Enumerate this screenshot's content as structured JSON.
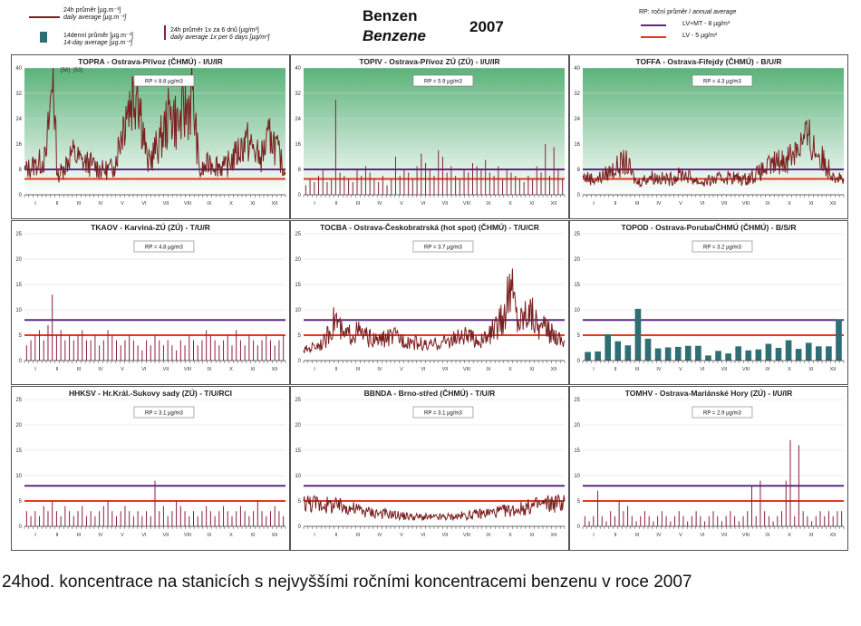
{
  "header": {
    "title_cz": "Benzen",
    "title_en": "Benzene",
    "year": "2007",
    "legend_line_cz": "24h průměr [µg.m⁻³]",
    "legend_line_en": "daily average [µg.m⁻³]",
    "legend_bar_cz": "14denní průměr [µg.m⁻³]",
    "legend_bar_en": "14-day average [µg.m⁻³]",
    "legend_spike_cz": "24h průměr 1x za 6 dnů [µg/m³]",
    "legend_spike_en": "daily average 1x per 6 days [µg/m³]",
    "rp_legend_cz": "RP: roční průměr",
    "rp_legend_en": "annual average",
    "lvmt_label": "LV+MT -  8  µg/m³",
    "lv_label": "LV   - 5 µg/m³"
  },
  "colors": {
    "line": "#7a1f1f",
    "bar": "#2e6e74",
    "spike": "#8a2040",
    "lvmt": "#5b2a86",
    "lv": "#e03a1a",
    "green": "#5bb37a"
  },
  "months": [
    "I",
    "II",
    "III",
    "IV",
    "V",
    "VI",
    "VII",
    "VIII",
    "IX",
    "X",
    "XI",
    "XII"
  ],
  "caption": "24hod. koncentrace na stanicích s nejvyššími ročními koncentracemi benzenu v roce 2007",
  "chart_data": [
    {
      "type": "line",
      "title": "TOPRA - Ostrava-Přívoz (ČHMÚ) - I/U/IR",
      "rp": "RP = 8.8 µg/m3",
      "ylim": [
        0,
        40
      ],
      "yticks": [
        0,
        8,
        16,
        24,
        32,
        40
      ],
      "annotations": [
        "[56]",
        "[53]"
      ],
      "green_background": true,
      "anchors": [
        [
          0,
          8
        ],
        [
          15,
          10
        ],
        [
          30,
          12
        ],
        [
          40,
          40
        ],
        [
          46,
          6
        ],
        [
          55,
          9
        ],
        [
          66,
          14
        ],
        [
          80,
          11
        ],
        [
          95,
          10
        ],
        [
          110,
          8
        ],
        [
          125,
          9
        ],
        [
          142,
          28
        ],
        [
          158,
          37
        ],
        [
          172,
          10
        ],
        [
          190,
          18
        ],
        [
          205,
          28
        ],
        [
          215,
          23
        ],
        [
          235,
          33
        ],
        [
          245,
          7
        ],
        [
          260,
          11
        ],
        [
          280,
          9
        ],
        [
          295,
          13
        ],
        [
          310,
          18
        ],
        [
          330,
          12
        ],
        [
          345,
          20
        ],
        [
          365,
          7
        ]
      ]
    },
    {
      "type": "spike",
      "title": "TOPIV - Ostrava-Přívoz ZÚ (ZÚ) - I/U/IR",
      "rp": "RP = 5.9 µg/m3",
      "ylim": [
        0,
        40
      ],
      "yticks": [
        0,
        8,
        16,
        24,
        32,
        40
      ],
      "green_background": true,
      "values": [
        3,
        5,
        4,
        6,
        8,
        4,
        5,
        30,
        7,
        6,
        5,
        4,
        8,
        6,
        9,
        7,
        5,
        4,
        6,
        3,
        5,
        12,
        6,
        8,
        7,
        5,
        9,
        13,
        10,
        8,
        6,
        14,
        12,
        7,
        9,
        6,
        5,
        8,
        7,
        10,
        9,
        8,
        11,
        7,
        6,
        9,
        5,
        8,
        7,
        6,
        5,
        4,
        6,
        5,
        9,
        7,
        16,
        6,
        15,
        8,
        5
      ]
    },
    {
      "type": "line",
      "title": "TOFFA - Ostrava-Fifejdy (ČHMÚ) - B/U/R",
      "rp": "RP = 4.3 µg/m3",
      "ylim": [
        0,
        40
      ],
      "yticks": [
        0,
        8,
        16,
        24,
        32,
        40
      ],
      "green_background": true,
      "anchors": [
        [
          0,
          6
        ],
        [
          20,
          5
        ],
        [
          40,
          8
        ],
        [
          60,
          11
        ],
        [
          75,
          4
        ],
        [
          95,
          6
        ],
        [
          120,
          5
        ],
        [
          140,
          7
        ],
        [
          165,
          4
        ],
        [
          185,
          5
        ],
        [
          205,
          6
        ],
        [
          225,
          5
        ],
        [
          245,
          7
        ],
        [
          265,
          10
        ],
        [
          285,
          12
        ],
        [
          300,
          16
        ],
        [
          315,
          19
        ],
        [
          330,
          13
        ],
        [
          350,
          7
        ],
        [
          365,
          5
        ]
      ]
    },
    {
      "type": "spike",
      "title": "TKAOV - Karviná-ZÚ (ZÚ) - T/U/R",
      "rp": "RP = 4.8 µg/m3",
      "ylim": [
        0,
        25
      ],
      "yticks": [
        0,
        5,
        10,
        15,
        20,
        25
      ],
      "green_background": false,
      "values": [
        3,
        4,
        5,
        6,
        4,
        7,
        13,
        5,
        6,
        4,
        5,
        4,
        5,
        6,
        4,
        4,
        5,
        3,
        4,
        6,
        5,
        4,
        3,
        4,
        5,
        4,
        3,
        2,
        4,
        3,
        5,
        4,
        3,
        4,
        3,
        2,
        4,
        3,
        5,
        4,
        3,
        4,
        6,
        5,
        4,
        3,
        4,
        5,
        3,
        6,
        4,
        3,
        5,
        4,
        3,
        4,
        5,
        4,
        3,
        4,
        5
      ]
    },
    {
      "type": "line",
      "title": "TOCBA - Ostrava-Českobratrská (hot spot) (ČHMÚ) - T/U/CR",
      "rp": "RP = 3.7 µg/m3",
      "ylim": [
        0,
        25
      ],
      "yticks": [
        0,
        5,
        10,
        15,
        20,
        25
      ],
      "green_background": false,
      "anchors": [
        [
          0,
          2
        ],
        [
          15,
          3
        ],
        [
          30,
          4
        ],
        [
          45,
          9
        ],
        [
          55,
          5
        ],
        [
          75,
          6
        ],
        [
          100,
          4
        ],
        [
          125,
          5
        ],
        [
          150,
          4
        ],
        [
          175,
          3
        ],
        [
          200,
          4
        ],
        [
          225,
          5
        ],
        [
          250,
          4
        ],
        [
          265,
          6
        ],
        [
          280,
          9
        ],
        [
          290,
          16
        ],
        [
          300,
          8
        ],
        [
          315,
          11
        ],
        [
          330,
          7
        ],
        [
          345,
          6
        ],
        [
          365,
          4
        ]
      ]
    },
    {
      "type": "bar",
      "title": "TOPOD - Ostrava-Poruba/ČHMÚ (ČHMÚ) - B/S/R",
      "rp": "RP = 3.2 µg/m3",
      "ylim": [
        0,
        25
      ],
      "yticks": [
        0,
        5,
        10,
        15,
        20,
        25
      ],
      "green_background": false,
      "values": [
        1.7,
        1.8,
        5.2,
        3.8,
        3.0,
        10.2,
        4.3,
        2.4,
        2.6,
        2.7,
        2.9,
        2.9,
        1.0,
        1.9,
        1.4,
        2.8,
        2.0,
        2.2,
        3.3,
        2.5,
        4.0,
        2.3,
        3.5,
        2.8,
        2.8,
        8.1
      ]
    },
    {
      "type": "spike",
      "title": "HHKSV - Hr.Král.-Sukovy sady (ZÚ) - T/U/RCI",
      "rp": "RP = 3.1 µg/m3",
      "ylim": [
        0,
        25
      ],
      "yticks": [
        0,
        5,
        10,
        15,
        20,
        25
      ],
      "green_background": false,
      "values": [
        3,
        2,
        3,
        2,
        4,
        3,
        5,
        3,
        2,
        4,
        3,
        2,
        3,
        4,
        2,
        3,
        2,
        3,
        4,
        5,
        3,
        2,
        3,
        4,
        3,
        2,
        3,
        2,
        3,
        2,
        9,
        3,
        4,
        2,
        3,
        5,
        4,
        3,
        2,
        3,
        2,
        3,
        4,
        3,
        2,
        3,
        4,
        3,
        2,
        3,
        4,
        3,
        2,
        3,
        5,
        3,
        2,
        3,
        4,
        3,
        2
      ]
    },
    {
      "type": "line",
      "title": "BBNDA - Brno-střed (ČHMÚ) - T/U/R",
      "rp": "RP = 3.1 µg/m3",
      "ylim": [
        0,
        25
      ],
      "yticks": [
        0,
        5,
        10,
        15,
        20,
        25
      ],
      "green_background": false,
      "anchors": [
        [
          0,
          5
        ],
        [
          30,
          4.5
        ],
        [
          60,
          4
        ],
        [
          90,
          3
        ],
        [
          120,
          2.5
        ],
        [
          150,
          2
        ],
        [
          180,
          1.8
        ],
        [
          210,
          2
        ],
        [
          240,
          2.5
        ],
        [
          270,
          3
        ],
        [
          300,
          3.5
        ],
        [
          330,
          4.5
        ],
        [
          365,
          5
        ]
      ]
    },
    {
      "type": "spike",
      "title": "TOMHV - Ostrava-Mariánské Hory (ZÚ) - I/U/IR",
      "rp": "RP = 2.9 µg/m3",
      "ylim": [
        0,
        25
      ],
      "yticks": [
        0,
        5,
        10,
        15,
        20,
        25
      ],
      "green_background": false,
      "values": [
        2,
        1,
        2,
        7,
        2,
        1,
        3,
        2,
        5,
        3,
        4,
        2,
        1,
        2,
        3,
        2,
        1,
        2,
        3,
        2,
        1,
        2,
        3,
        2,
        1,
        2,
        3,
        2,
        1,
        2,
        3,
        2,
        1,
        2,
        3,
        2,
        1,
        2,
        3,
        8,
        2,
        9,
        3,
        2,
        1,
        2,
        3,
        9,
        17,
        2,
        16,
        3,
        2,
        1,
        2,
        3,
        2,
        3,
        2,
        3,
        3
      ]
    }
  ]
}
